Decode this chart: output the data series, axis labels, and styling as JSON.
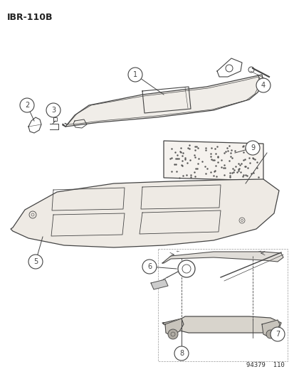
{
  "title": "IBR−110B",
  "watermark": "94379  110",
  "bg_color": "#ffffff",
  "line_color": "#444444",
  "fig_width": 4.14,
  "fig_height": 5.33,
  "dpi": 100
}
